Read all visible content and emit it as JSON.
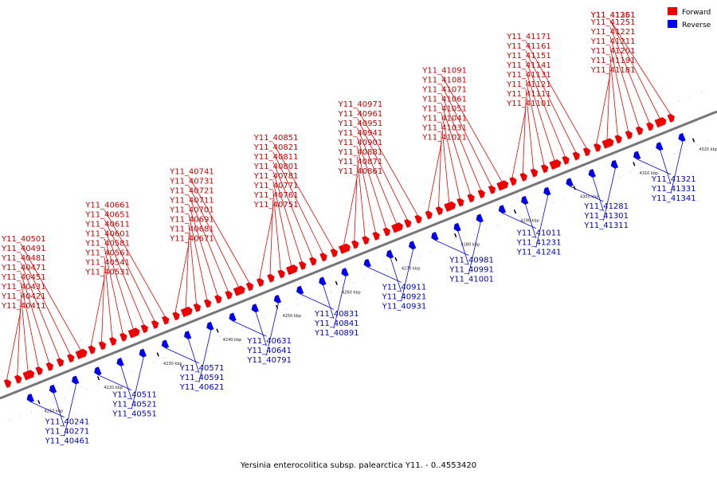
{
  "caption": "Yersinia enterocolitica subsp. palearctica Y11. - 0..4553420",
  "colors": {
    "forward": "#ee0000",
    "reverse": "#0000ee",
    "forward_label": "#cc0000",
    "reverse_label": "#0000cc",
    "axis": "#808080"
  },
  "legend": [
    {
      "label": "Forward",
      "color": "#ee0000"
    },
    {
      "label": "Reverse",
      "color": "#0000ee"
    }
  ],
  "axis_ticks": [
    "4210 kbp",
    "4220 kbp",
    "4230 kbp",
    "4240 kbp",
    "4250 kbp",
    "4260 kbp",
    "4270 kbp",
    "4280 kbp",
    "4290 kbp",
    "4300 kbp",
    "4310 kbp",
    "4320 kbp"
  ],
  "forward_genes": [
    "Y11_40411",
    "Y11_40421",
    "Y11_40431",
    "Y11_40451",
    "Y11_40471",
    "Y11_40481",
    "Y11_40491",
    "Y11_40501",
    "Y11_40531",
    "Y11_40541",
    "Y11_40561",
    "Y11_40581",
    "Y11_40601",
    "Y11_40611",
    "Y11_40651",
    "Y11_40661",
    "Y11_40671",
    "Y11_40681",
    "Y11_40691",
    "Y11_40701",
    "Y11_40711",
    "Y11_40721",
    "Y11_40731",
    "Y11_40741",
    "Y11_40751",
    "Y11_40761",
    "Y11_40771",
    "Y11_40781",
    "Y11_40801",
    "Y11_40811",
    "Y11_40821",
    "Y11_40851",
    "Y11_40861",
    "Y11_40871",
    "Y11_40881",
    "Y11_40901",
    "Y11_40941",
    "Y11_40951",
    "Y11_40961",
    "Y11_40971",
    "Y11_41021",
    "Y11_41031",
    "Y11_41041",
    "Y11_41051",
    "Y11_41061",
    "Y11_41071",
    "Y11_41081",
    "Y11_41091",
    "Y11_41101",
    "Y11_41111",
    "Y11_41121",
    "Y11_41131",
    "Y11_41141",
    "Y11_41151",
    "Y11_41161",
    "Y11_41171",
    "Y11_41181",
    "Y11_41191",
    "Y11_41201",
    "Y11_41211",
    "Y11_41221",
    "Y11_41251",
    "Y11_41261",
    "Y11_41351"
  ],
  "reverse_genes": [
    "Y11_40241",
    "Y11_40271",
    "Y11_40461",
    "Y11_40511",
    "Y11_40521",
    "Y11_40551",
    "Y11_40571",
    "Y11_40591",
    "Y11_40621",
    "Y11_40631",
    "Y11_40641",
    "Y11_40791",
    "Y11_40831",
    "Y11_40841",
    "Y11_40891",
    "Y11_40911",
    "Y11_40921",
    "Y11_40931",
    "Y11_40981",
    "Y11_40991",
    "Y11_41001",
    "Y11_41011",
    "Y11_41231",
    "Y11_41241",
    "Y11_41281",
    "Y11_41301",
    "Y11_41311",
    "Y11_41321",
    "Y11_41331",
    "Y11_41341"
  ]
}
